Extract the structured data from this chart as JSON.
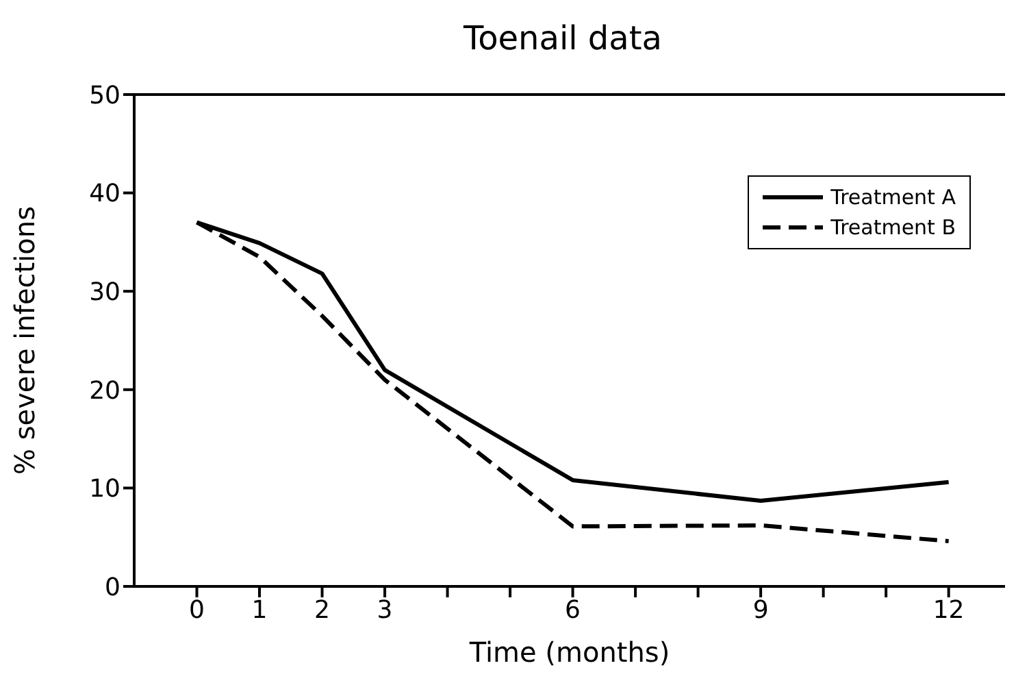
{
  "chart_data": {
    "type": "line",
    "title": "Toenail data",
    "xlabel": "Time (months)",
    "ylabel": "% severe infections",
    "x": [
      0,
      1,
      2,
      3,
      6,
      9,
      12
    ],
    "series": [
      {
        "name": "Treatment A",
        "color": "#000000",
        "line_style": "solid",
        "values": [
          37,
          34.9,
          31.8,
          22,
          10.8,
          8.7,
          10.6
        ]
      },
      {
        "name": "Treatment B",
        "color": "#000000",
        "line_style": "dashed",
        "values": [
          37,
          33.5,
          27.5,
          21,
          6.1,
          6.2,
          4.6
        ]
      }
    ],
    "xlim": [
      -1,
      12.9
    ],
    "ylim": [
      0,
      50
    ],
    "xticks": [
      0,
      1,
      2,
      3,
      {
        "value": 4,
        "label": null
      },
      {
        "value": 5,
        "label": null
      },
      6,
      {
        "value": 7,
        "label": null
      },
      {
        "value": 8,
        "label": null
      },
      9,
      {
        "value": 10,
        "label": null
      },
      {
        "value": 11,
        "label": null
      },
      12
    ],
    "yticks": [
      0,
      10,
      20,
      30,
      40,
      50
    ],
    "grid": false,
    "legend": "top right",
    "marker": "none"
  }
}
